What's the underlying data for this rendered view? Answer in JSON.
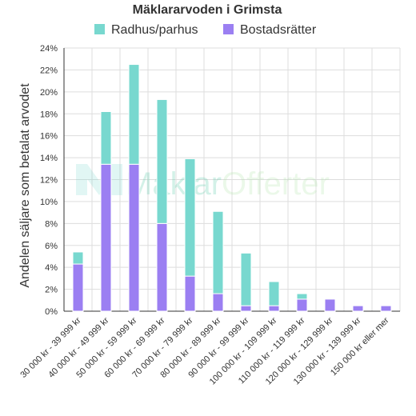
{
  "chart_data": {
    "type": "bar",
    "stacked": true,
    "title": "Mäklararvoden i Grimsta",
    "ylabel": "Andelen säljare som betalat arvodet",
    "xlabel": "",
    "ylim": [
      0,
      24
    ],
    "yticks": [
      "0%",
      "2%",
      "4%",
      "6%",
      "8%",
      "10%",
      "12%",
      "14%",
      "16%",
      "18%",
      "20%",
      "22%",
      "24%"
    ],
    "grid": true,
    "legend_position": "top",
    "categories": [
      "30 000 kr - 39 999 kr",
      "40 000 kr - 49 999 kr",
      "50 000 kr - 59 999 kr",
      "60 000 kr - 69 999 kr",
      "70 000 kr - 79 999 kr",
      "80 000 kr - 89 999 kr",
      "90 000 kr - 99 999 kr",
      "100 000 kr - 109 999 kr",
      "110 000 kr - 119 999 kr",
      "120 000 kr - 129 999 kr",
      "130 000 kr - 139 999 kr",
      "150 000 kr eller mer"
    ],
    "series": [
      {
        "name": "Bostadsrätter",
        "color": "#9b7ff2",
        "values": [
          4.3,
          13.4,
          13.4,
          8.0,
          3.2,
          1.6,
          0.5,
          0.5,
          1.1,
          1.1,
          0.5,
          0.5
        ]
      },
      {
        "name": "Radhus/parhus",
        "color": "#78d8cf",
        "values": [
          1.1,
          4.8,
          9.1,
          11.3,
          10.7,
          7.5,
          4.8,
          2.2,
          0.5,
          0,
          0,
          0
        ]
      }
    ],
    "legend_order": [
      "Radhus/parhus",
      "Bostadsrätter"
    ]
  },
  "watermark": {
    "part1": "Mäklar",
    "part2": "Offerter"
  }
}
